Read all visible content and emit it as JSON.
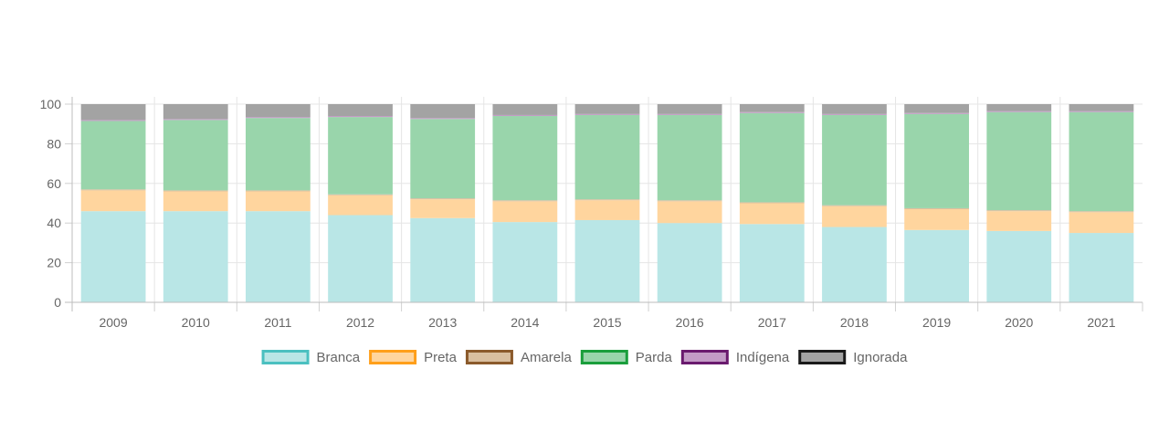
{
  "chart_data": {
    "type": "bar",
    "stacked": true,
    "categories": [
      "2009",
      "2010",
      "2011",
      "2012",
      "2013",
      "2014",
      "2015",
      "2016",
      "2017",
      "2018",
      "2019",
      "2020",
      "2021"
    ],
    "ylim": [
      0,
      100
    ],
    "yticks": [
      0,
      20,
      40,
      60,
      80,
      100
    ],
    "grid": true,
    "legend_position": "bottom",
    "series": [
      {
        "name": "Branca",
        "fill": "#b9e6e6",
        "border": "#4bc0c0",
        "values": [
          46,
          46,
          46,
          44,
          42.5,
          40.5,
          41.5,
          40,
          39.5,
          38,
          36.5,
          36,
          35
        ]
      },
      {
        "name": "Preta",
        "fill": "#ffd59e",
        "border": "#ff9f1a",
        "values": [
          10.5,
          10,
          10,
          10,
          9.5,
          10.5,
          10,
          11,
          10.5,
          10.5,
          10.5,
          10,
          10.5
        ]
      },
      {
        "name": "Amarela",
        "fill": "#d9bf9f",
        "border": "#8b5a2b",
        "values": [
          0.5,
          0.5,
          0.5,
          0.5,
          0.5,
          0.5,
          0.5,
          0.5,
          0.5,
          0.5,
          0.5,
          0.5,
          0.5
        ]
      },
      {
        "name": "Parda",
        "fill": "#99d5ab",
        "border": "#1a9e3c",
        "values": [
          34.5,
          35.5,
          36.5,
          39,
          40,
          42.5,
          42.5,
          43,
          45,
          45.5,
          47.5,
          49.5,
          50
        ]
      },
      {
        "name": "Indígena",
        "fill": "#c39bc6",
        "border": "#6a1a6e",
        "values": [
          0.5,
          0.5,
          0.5,
          0.5,
          0.5,
          0.5,
          0.5,
          0.5,
          0.5,
          0.5,
          0.5,
          0.5,
          0.5
        ]
      },
      {
        "name": "Ignorada",
        "fill": "#a3a3a3",
        "border": "#1a1a1a",
        "values": [
          8,
          7.5,
          6.5,
          6,
          7,
          5.5,
          5,
          5,
          4.5,
          5,
          4.5,
          3.5,
          3.5
        ]
      }
    ]
  }
}
